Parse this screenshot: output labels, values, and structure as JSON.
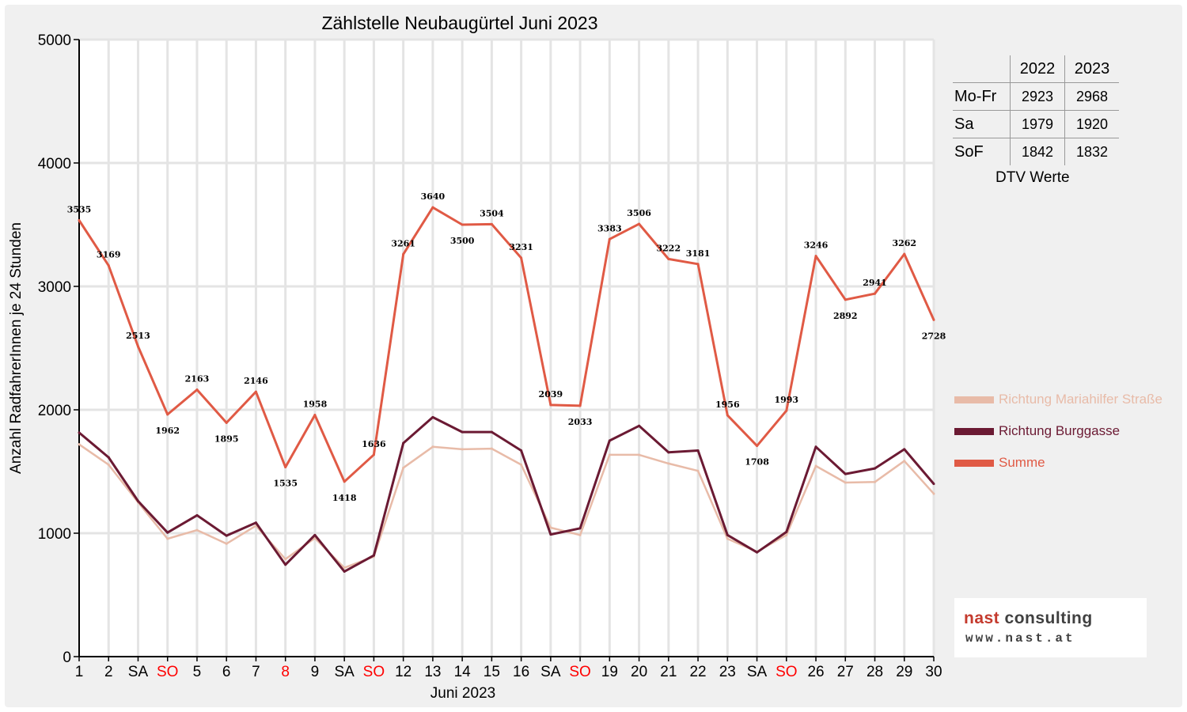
{
  "chart_data": {
    "type": "line",
    "title": "Zählstelle Neubaugürtel Juni 2023",
    "xlabel": "Juni 2023",
    "ylabel": "Anzahl RadfahrerInnen je 24 Stunden",
    "ylim": [
      0,
      5000
    ],
    "yticks": [
      0,
      1000,
      2000,
      3000,
      4000,
      5000
    ],
    "grid": true,
    "legend_position": "right",
    "categories": [
      "1",
      "2",
      "SA",
      "SO",
      "5",
      "6",
      "7",
      "8",
      "9",
      "SA",
      "SO",
      "12",
      "13",
      "14",
      "15",
      "16",
      "SA",
      "SO",
      "19",
      "20",
      "21",
      "22",
      "23",
      "SA",
      "SO",
      "26",
      "27",
      "28",
      "29",
      "30"
    ],
    "highlighted_categories": [
      "SO",
      "8"
    ],
    "series": [
      {
        "name": "Richtung Mariahilfer Straße",
        "color": "#e8bba8",
        "values": [
          1720,
          1555,
          1250,
          955,
          1025,
          915,
          1060,
          790,
          960,
          720,
          810,
          1530,
          1700,
          1680,
          1685,
          1555,
          1045,
          985,
          1635,
          1635,
          1565,
          1505,
          955,
          850,
          985,
          1545,
          1410,
          1415,
          1585,
          1320
        ]
      },
      {
        "name": "Richtung Burggasse",
        "color": "#6b1a33",
        "values": [
          1815,
          1615,
          1260,
          1005,
          1145,
          980,
          1085,
          745,
          985,
          690,
          820,
          1730,
          1940,
          1820,
          1820,
          1670,
          990,
          1040,
          1750,
          1870,
          1655,
          1670,
          985,
          845,
          1010,
          1700,
          1480,
          1525,
          1680,
          1400
        ]
      },
      {
        "name": "Summe",
        "color": "#e05a45",
        "values": [
          3535,
          3169,
          2513,
          1962,
          2163,
          1895,
          2146,
          1535,
          1958,
          1418,
          1636,
          3261,
          3640,
          3500,
          3504,
          3231,
          2039,
          2033,
          3383,
          3506,
          3222,
          3181,
          1956,
          1708,
          1993,
          3246,
          2892,
          2941,
          3262,
          2728
        ]
      }
    ]
  },
  "dtv_table": {
    "headers": [
      "2022",
      "2023"
    ],
    "rows": [
      {
        "label": "Mo-Fr",
        "v2022": "2923",
        "v2023": "2968"
      },
      {
        "label": "Sa",
        "v2022": "1979",
        "v2023": "1920"
      },
      {
        "label": "SoF",
        "v2022": "1842",
        "v2023": "1832"
      }
    ],
    "caption": "DTV Werte"
  },
  "legend": {
    "items": [
      {
        "label": "Richtung Mariahilfer Straße",
        "color": "#e8bba8"
      },
      {
        "label": "Richtung Burggasse",
        "color": "#6b1a33"
      },
      {
        "label": "Summe",
        "color": "#e05a45"
      }
    ]
  },
  "logo": {
    "name_part1": "nast",
    "name_part2": " consulting",
    "url": "www.nast.at"
  },
  "colors": {
    "background": "#f0f0f0",
    "plot_background": "#ffffff",
    "holiday_label": "#ff0000",
    "grid": "#e6e6e6"
  }
}
